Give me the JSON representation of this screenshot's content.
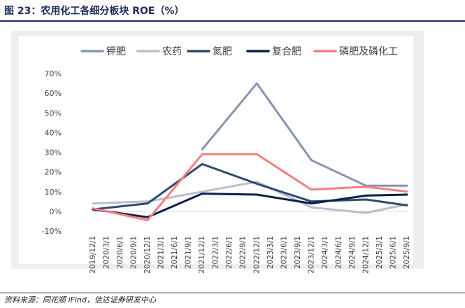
{
  "figure": {
    "title": "图 23：农用化工各细分板块 ROE（%）",
    "source": "资料来源：同花顺 iFind，信达证券研发中心"
  },
  "chart_data": {
    "type": "line",
    "title": "农用化工各细分板块 ROE（%）",
    "xlabel": "",
    "ylabel": "",
    "ylim": [
      -10,
      70
    ],
    "yticks": [
      -10,
      0,
      10,
      20,
      30,
      40,
      50,
      60,
      70
    ],
    "ytick_labels": [
      "-10%",
      "0%",
      "10%",
      "20%",
      "30%",
      "40%",
      "50%",
      "60%",
      "70%"
    ],
    "categories": [
      "2019/12/1",
      "2020/3/1",
      "2020/6/1",
      "2020/9/1",
      "2020/12/1",
      "2021/3/1",
      "2021/6/1",
      "2021/9/1",
      "2021/12/1",
      "2022/3/1",
      "2022/6/1",
      "2022/9/1",
      "2022/12/1",
      "2023/3/1",
      "2023/6/1",
      "2023/9/1",
      "2023/12/1",
      "2024/3/1",
      "2024/6/1",
      "2024/9/1",
      "2024/12/1",
      "2025/3/1",
      "2025/6/1",
      "2025/9/1"
    ],
    "legend_position": "top",
    "series": [
      {
        "name": "钾肥",
        "color": "#8496b0",
        "points": [
          [
            8,
            31.5
          ],
          [
            12,
            65
          ],
          [
            16,
            26
          ],
          [
            20,
            13
          ],
          [
            23,
            13
          ]
        ]
      },
      {
        "name": "农药",
        "color": "#b8bfcc",
        "points": [
          [
            0,
            4
          ],
          [
            4,
            5
          ],
          [
            8,
            10
          ],
          [
            12,
            15
          ],
          [
            16,
            2
          ],
          [
            20,
            -0.8
          ],
          [
            23,
            3.5
          ]
        ]
      },
      {
        "name": "氮肥",
        "color": "#2e4a6e",
        "points": [
          [
            0,
            1
          ],
          [
            4,
            4
          ],
          [
            8,
            24
          ],
          [
            12,
            14
          ],
          [
            16,
            5
          ],
          [
            20,
            6
          ],
          [
            23,
            3
          ]
        ]
      },
      {
        "name": "复合肥",
        "color": "#0c1f4a",
        "points": [
          [
            0,
            1
          ],
          [
            4,
            -3
          ],
          [
            8,
            9
          ],
          [
            12,
            8.5
          ],
          [
            16,
            4
          ],
          [
            20,
            8
          ],
          [
            23,
            8.5
          ]
        ]
      },
      {
        "name": "磷肥及磷化工",
        "color": "#f47f7f",
        "points": [
          [
            0,
            1.5
          ],
          [
            4,
            -4.5
          ],
          [
            8,
            29
          ],
          [
            12,
            29
          ],
          [
            16,
            11
          ],
          [
            20,
            12.5
          ],
          [
            23,
            10
          ]
        ]
      }
    ]
  }
}
